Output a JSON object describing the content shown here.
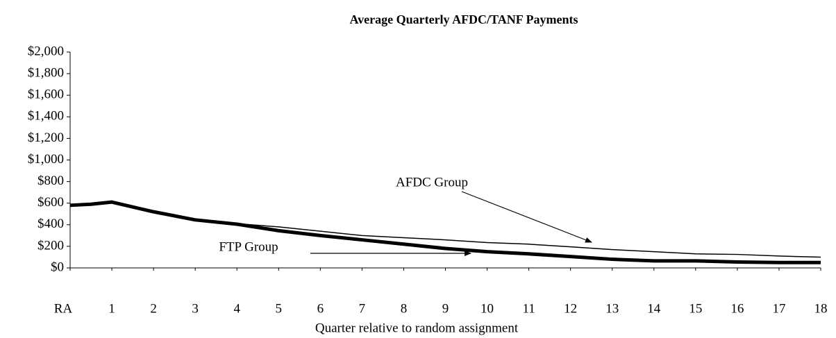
{
  "chart_data": {
    "type": "line",
    "title": "Average Quarterly AFDC/TANF Payments",
    "x_label": "Quarter relative to random assignment",
    "x": [
      0,
      0.5,
      1,
      2,
      3,
      4,
      5,
      6,
      7,
      8,
      9,
      10,
      11,
      12,
      13,
      14,
      15,
      16,
      17,
      18
    ],
    "series": [
      {
        "name": "AFDC Group",
        "color": "#000000",
        "width": 1.5,
        "values": [
          580,
          590,
          610,
          520,
          450,
          410,
          380,
          340,
          300,
          280,
          260,
          235,
          220,
          195,
          170,
          150,
          130,
          125,
          110,
          100
        ]
      },
      {
        "name": "FTP Group",
        "color": "#000000",
        "width": 5,
        "values": [
          580,
          590,
          610,
          520,
          445,
          405,
          345,
          300,
          260,
          220,
          180,
          150,
          130,
          105,
          80,
          65,
          65,
          55,
          50,
          50
        ]
      }
    ],
    "xlim": [
      0,
      18
    ],
    "xticks": [
      {
        "value": 0,
        "label": "RA"
      },
      1,
      2,
      3,
      4,
      5,
      6,
      7,
      8,
      9,
      10,
      11,
      12,
      13,
      14,
      15,
      16,
      17,
      18
    ],
    "ylim": [
      0,
      2000
    ],
    "yticks": [
      {
        "value": 0,
        "label": "$0"
      },
      {
        "value": 200,
        "label": "$200"
      },
      {
        "value": 400,
        "label": "$400"
      },
      {
        "value": 600,
        "label": "$600"
      },
      {
        "value": 800,
        "label": "$800"
      },
      {
        "value": 1000,
        "label": "$1,000"
      },
      {
        "value": 1200,
        "label": "$1,200"
      },
      {
        "value": 1400,
        "label": "$1,400"
      },
      {
        "value": 1600,
        "label": "$1,600"
      },
      {
        "value": 1800,
        "label": "$1,800"
      },
      {
        "value": 2000,
        "label": "$2,000"
      }
    ],
    "grid": false
  }
}
